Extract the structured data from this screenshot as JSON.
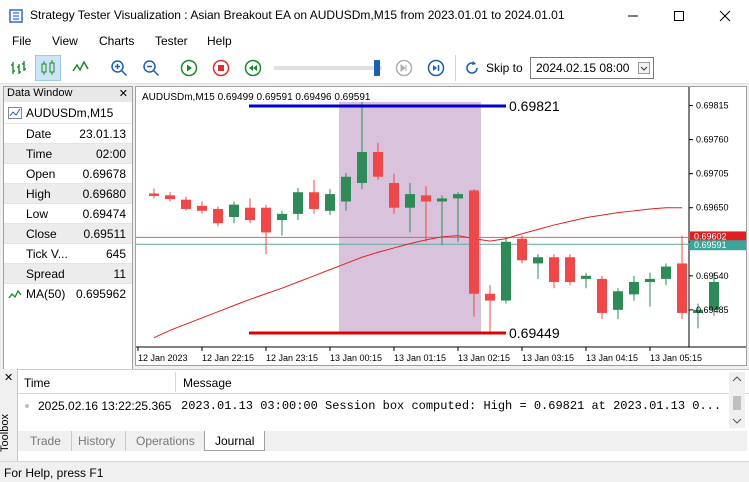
{
  "window": {
    "title": "Strategy Tester Visualization : Asian Breakout EA on AUDUSDm,M15 from 2023.01.01 to 2024.01.01"
  },
  "menu": [
    "File",
    "View",
    "Charts",
    "Tester",
    "Help"
  ],
  "toolbar": {
    "skip_label": "Skip to",
    "skip_date": "2024.02.15 08:00",
    "speed_fraction": 0.95
  },
  "data_window": {
    "header": "Data Window",
    "symbol": "AUDUSDm,M15",
    "rows": [
      {
        "label": "Date",
        "value": "23.01.13"
      },
      {
        "label": "Time",
        "value": "02:00"
      },
      {
        "label": "Open",
        "value": "0.69678"
      },
      {
        "label": "High",
        "value": "0.69680"
      },
      {
        "label": "Low",
        "value": "0.69474"
      },
      {
        "label": "Close",
        "value": "0.69511"
      },
      {
        "label": "Tick V...",
        "value": "645"
      },
      {
        "label": "Spread",
        "value": "11"
      }
    ],
    "indicator": {
      "label": "MA(50)",
      "value": "0.695962"
    }
  },
  "chart": {
    "header": "AUDUSDm,M15  0.69499 0.69591 0.69496 0.69591",
    "high_label": "0.69821",
    "low_label": "0.69449",
    "price_axis": [
      "0.69815",
      "0.69760",
      "0.69705",
      "0.69650",
      "0.69595",
      "0.69540",
      "0.69485"
    ],
    "current_price_label": "0.69591",
    "red_level_label": "0.69602",
    "time_axis": [
      "12 Jan 2023",
      "12 Jan 22:15",
      "12 Jan 23:15",
      "13 Jan 00:15",
      "13 Jan 01:15",
      "13 Jan 02:15",
      "13 Jan 03:15",
      "13 Jan 04:15",
      "13 Jan 05:15"
    ],
    "colors": {
      "bull": "#2e8b57",
      "bear": "#ef4848",
      "ma": "#e02020",
      "box": "#d9c3dc",
      "high_line": "#0000cc",
      "low_line": "#dd0000"
    }
  },
  "chart_data": {
    "type": "candlestick",
    "ylim": [
      0.69425,
      0.69845
    ],
    "ohlc": [
      [
        0.69673,
        0.69681,
        0.69665,
        0.69669
      ],
      [
        0.6967,
        0.69675,
        0.6966,
        0.69664
      ],
      [
        0.69663,
        0.69668,
        0.69645,
        0.69648
      ],
      [
        0.69653,
        0.6966,
        0.6964,
        0.69645
      ],
      [
        0.69648,
        0.69652,
        0.6962,
        0.69625
      ],
      [
        0.69635,
        0.6966,
        0.69625,
        0.69655
      ],
      [
        0.6965,
        0.69665,
        0.69625,
        0.6963
      ],
      [
        0.6965,
        0.69655,
        0.69575,
        0.6961
      ],
      [
        0.6963,
        0.69645,
        0.69605,
        0.6964
      ],
      [
        0.6964,
        0.69682,
        0.6963,
        0.69675
      ],
      [
        0.69675,
        0.69695,
        0.6964,
        0.69648
      ],
      [
        0.69645,
        0.6968,
        0.69638,
        0.69672
      ],
      [
        0.6966,
        0.69706,
        0.69645,
        0.697
      ],
      [
        0.6969,
        0.69821,
        0.6968,
        0.6974
      ],
      [
        0.6974,
        0.69755,
        0.69695,
        0.697
      ],
      [
        0.6969,
        0.69705,
        0.6964,
        0.6965
      ],
      [
        0.6965,
        0.6969,
        0.6961,
        0.69672
      ],
      [
        0.6967,
        0.69685,
        0.69595,
        0.6966
      ],
      [
        0.6966,
        0.6967,
        0.6959,
        0.69665
      ],
      [
        0.69665,
        0.69675,
        0.69595,
        0.69672
      ],
      [
        0.69678,
        0.6968,
        0.69474,
        0.69511
      ],
      [
        0.69511,
        0.69525,
        0.69449,
        0.695
      ],
      [
        0.695,
        0.69602,
        0.69495,
        0.69595
      ],
      [
        0.696,
        0.69605,
        0.6956,
        0.69565
      ],
      [
        0.6956,
        0.69575,
        0.69535,
        0.6957
      ],
      [
        0.6957,
        0.69575,
        0.6952,
        0.6953
      ],
      [
        0.6957,
        0.69575,
        0.69525,
        0.6953
      ],
      [
        0.69535,
        0.69545,
        0.6952,
        0.6954
      ],
      [
        0.69535,
        0.6954,
        0.6947,
        0.6948
      ],
      [
        0.69485,
        0.6952,
        0.6947,
        0.69515
      ],
      [
        0.6951,
        0.6954,
        0.695,
        0.6953
      ],
      [
        0.6953,
        0.69545,
        0.6949,
        0.69535
      ],
      [
        0.69535,
        0.6956,
        0.69525,
        0.69555
      ],
      [
        0.6956,
        0.69605,
        0.6947,
        0.6948
      ],
      [
        0.6948,
        0.69495,
        0.69455,
        0.69485
      ],
      [
        0.69485,
        0.69545,
        0.69475,
        0.6953
      ]
    ],
    "ma": [
      0.6944,
      0.69452,
      0.69462,
      0.69472,
      0.69482,
      0.69492,
      0.69502,
      0.69511,
      0.6952,
      0.6953,
      0.6954,
      0.6955,
      0.6956,
      0.6957,
      0.69578,
      0.69585,
      0.69592,
      0.69598,
      0.69603,
      0.69605,
      0.696,
      0.69596,
      0.696,
      0.69608,
      0.69615,
      0.69622,
      0.69628,
      0.69634,
      0.69638,
      0.69642,
      0.69645,
      0.69648,
      0.6965,
      0.6965,
      0.69648,
      0.69646
    ],
    "session_box": {
      "start_index": 12,
      "end_index": 20
    },
    "session_high": 0.69821,
    "session_low": 0.69449,
    "bid_level": 0.69591,
    "red_level": 0.69602
  },
  "bottom_panel": {
    "columns": [
      "Time",
      "Message"
    ],
    "rows": [
      {
        "time": "2025.02.16 13:22:25.365",
        "message": "2023.01.13 03:00:00   Session box computed: High = 0.69821 at 2023.01.13 0..."
      }
    ],
    "toolbox_label": "Toolbox",
    "tabs": [
      "Trade",
      "History",
      "Operations",
      "Journal"
    ],
    "active_tab": "Journal"
  },
  "status": "For Help, press F1"
}
